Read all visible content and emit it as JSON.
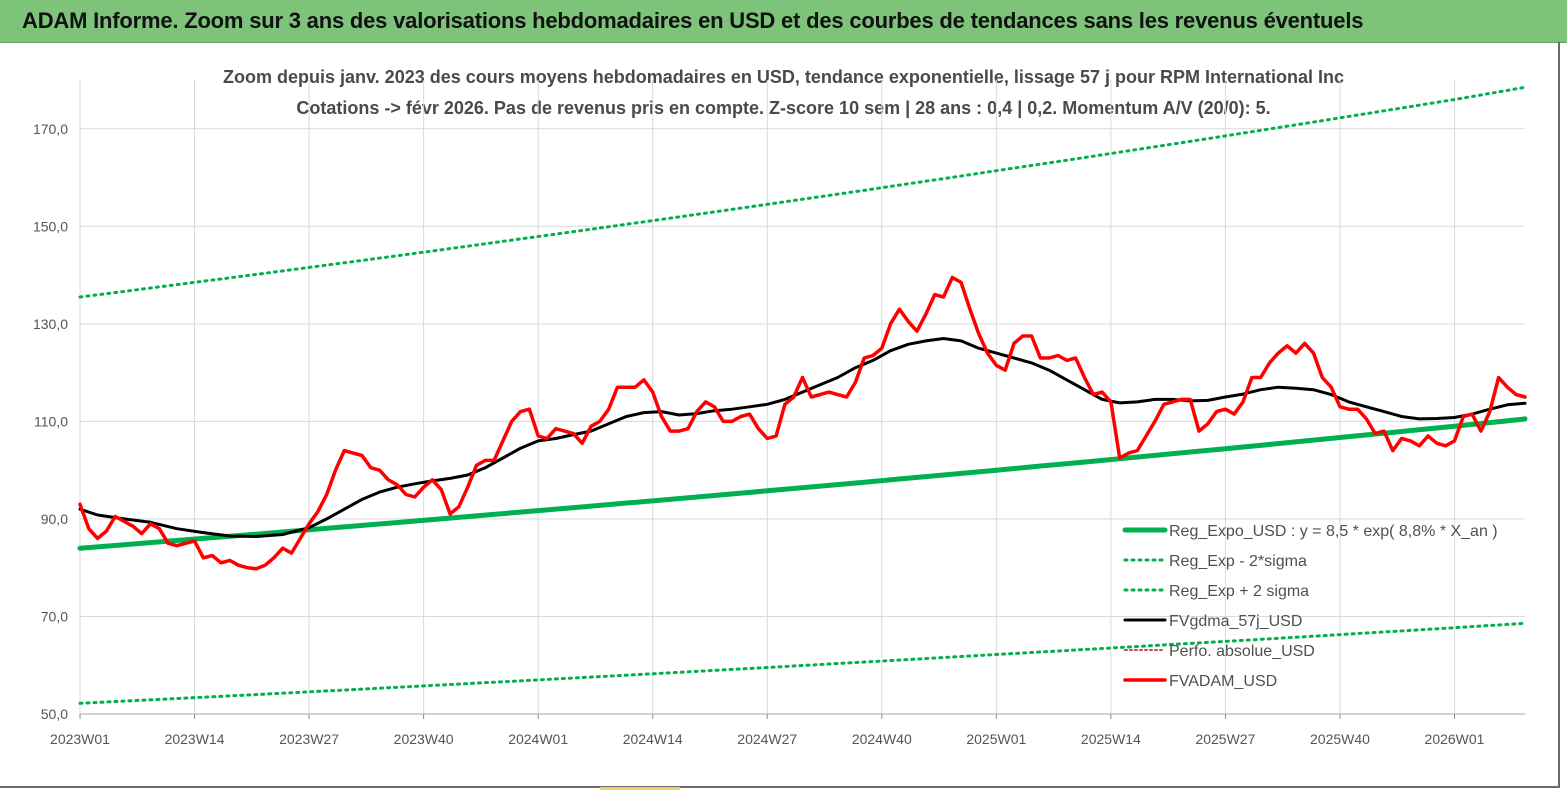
{
  "banner": {
    "title": "ADAM Informe. Zoom sur 3 ans des valorisations hebdomadaires en USD et des courbes de tendances sans les revenus éventuels"
  },
  "colors": {
    "banner_bg": "#7dc37a",
    "trend": "#00b050",
    "band": "#00b050",
    "gdma": "#000000",
    "perfo": "#c0504d",
    "adam": "#ff0000",
    "grid": "#d9d9d9"
  },
  "chart_data": {
    "type": "line",
    "title": "Zoom depuis janv. 2023 des cours moyens hebdomadaires en USD, tendance exponentielle, lissage 57 j pour RPM International Inc",
    "subtitle": "Cotations -> févr 2026. Pas de revenus pris en compte. Z-score 10 sem | 28 ans : 0,4 | 0,2. Momentum A/V (20/0): 5.",
    "xlabel": "",
    "ylabel": "",
    "ylim": [
      50,
      180
    ],
    "y_ticks": [
      "50,0",
      "70,0",
      "90,0",
      "110,0",
      "130,0",
      "150,0",
      "170,0"
    ],
    "y_tick_values": [
      50,
      70,
      90,
      110,
      130,
      150,
      170
    ],
    "x_ticks": [
      "2023W01",
      "2023W14",
      "2023W27",
      "2023W40",
      "2024W01",
      "2024W14",
      "2024W27",
      "2024W40",
      "2025W01",
      "2025W14",
      "2025W27",
      "2025W40",
      "2026W01"
    ],
    "x_tick_weeks": [
      0,
      13,
      26,
      39,
      52,
      65,
      78,
      91,
      104,
      117,
      130,
      143,
      156
    ],
    "x_range_weeks": [
      0,
      164
    ],
    "grid": true,
    "legend_position": "bottom-right",
    "series": [
      {
        "name": "Reg_Expo_USD : y = 8,5 * exp( 8,8% * X_an )",
        "style": "solid-thick",
        "points": [
          [
            0,
            84.0
          ],
          [
            52,
            91.7
          ],
          [
            104,
            100.0
          ],
          [
            156,
            109.0
          ],
          [
            164,
            110.5
          ]
        ]
      },
      {
        "name": "Reg_Exp - 2*sigma",
        "style": "dotted",
        "points": [
          [
            0,
            52.2
          ],
          [
            52,
            57.0
          ],
          [
            104,
            62.2
          ],
          [
            156,
            67.7
          ],
          [
            164,
            68.6
          ]
        ]
      },
      {
        "name": "Reg_Exp + 2 sigma",
        "style": "dotted",
        "points": [
          [
            0,
            135.5
          ],
          [
            52,
            147.9
          ],
          [
            104,
            161.4
          ],
          [
            156,
            176.0
          ],
          [
            164,
            178.5
          ]
        ]
      },
      {
        "name": "FVgdma_57j_USD",
        "style": "solid",
        "points": [
          [
            0,
            92.0
          ],
          [
            2,
            90.8
          ],
          [
            5,
            90.0
          ],
          [
            8,
            89.3
          ],
          [
            11,
            88.0
          ],
          [
            14,
            87.2
          ],
          [
            17,
            86.5
          ],
          [
            20,
            86.4
          ],
          [
            23,
            86.8
          ],
          [
            26,
            88.2
          ],
          [
            28,
            90.0
          ],
          [
            30,
            92.0
          ],
          [
            32,
            94.0
          ],
          [
            34,
            95.5
          ],
          [
            36,
            96.5
          ],
          [
            38,
            97.2
          ],
          [
            40,
            97.8
          ],
          [
            42,
            98.3
          ],
          [
            44,
            99.0
          ],
          [
            46,
            100.5
          ],
          [
            48,
            102.5
          ],
          [
            50,
            104.5
          ],
          [
            52,
            106.0
          ],
          [
            54,
            106.5
          ],
          [
            56,
            107.3
          ],
          [
            58,
            108.0
          ],
          [
            60,
            109.5
          ],
          [
            62,
            111.0
          ],
          [
            64,
            111.8
          ],
          [
            66,
            112.0
          ],
          [
            68,
            111.3
          ],
          [
            70,
            111.6
          ],
          [
            72,
            112.2
          ],
          [
            74,
            112.5
          ],
          [
            76,
            113.0
          ],
          [
            78,
            113.5
          ],
          [
            80,
            114.5
          ],
          [
            82,
            116.0
          ],
          [
            84,
            117.5
          ],
          [
            86,
            119.0
          ],
          [
            88,
            121.0
          ],
          [
            90,
            122.5
          ],
          [
            92,
            124.5
          ],
          [
            94,
            125.8
          ],
          [
            96,
            126.5
          ],
          [
            98,
            127.0
          ],
          [
            100,
            126.5
          ],
          [
            102,
            125.0
          ],
          [
            104,
            124.0
          ],
          [
            106,
            123.0
          ],
          [
            108,
            122.0
          ],
          [
            110,
            120.5
          ],
          [
            112,
            118.5
          ],
          [
            114,
            116.5
          ],
          [
            116,
            114.5
          ],
          [
            118,
            113.8
          ],
          [
            120,
            114.0
          ],
          [
            122,
            114.5
          ],
          [
            124,
            114.5
          ],
          [
            126,
            114.2
          ],
          [
            128,
            114.3
          ],
          [
            130,
            115.0
          ],
          [
            132,
            115.6
          ],
          [
            134,
            116.5
          ],
          [
            136,
            117.0
          ],
          [
            138,
            116.8
          ],
          [
            140,
            116.5
          ],
          [
            142,
            115.5
          ],
          [
            144,
            114.0
          ],
          [
            146,
            113.0
          ],
          [
            148,
            112.0
          ],
          [
            150,
            111.0
          ],
          [
            152,
            110.5
          ],
          [
            154,
            110.6
          ],
          [
            156,
            110.8
          ],
          [
            158,
            111.5
          ],
          [
            160,
            112.5
          ],
          [
            162,
            113.4
          ],
          [
            164,
            113.7
          ]
        ]
      },
      {
        "name": "Perfo. absolue_USD",
        "style": "dotted-thin",
        "points": []
      },
      {
        "name": "FVADAM_USD",
        "style": "solid-thick",
        "points": [
          [
            0,
            93.0
          ],
          [
            1,
            88.0
          ],
          [
            2,
            86.0
          ],
          [
            3,
            87.5
          ],
          [
            4,
            90.5
          ],
          [
            5,
            89.5
          ],
          [
            6,
            88.5
          ],
          [
            7,
            87.0
          ],
          [
            8,
            89.0
          ],
          [
            9,
            88.0
          ],
          [
            10,
            85.0
          ],
          [
            11,
            84.5
          ],
          [
            12,
            85.0
          ],
          [
            13,
            85.5
          ],
          [
            14,
            82.0
          ],
          [
            15,
            82.5
          ],
          [
            16,
            81.0
          ],
          [
            17,
            81.5
          ],
          [
            18,
            80.5
          ],
          [
            19,
            80.0
          ],
          [
            20,
            79.8
          ],
          [
            21,
            80.5
          ],
          [
            22,
            82.0
          ],
          [
            23,
            84.0
          ],
          [
            24,
            83.0
          ],
          [
            25,
            86.0
          ],
          [
            26,
            89.0
          ],
          [
            27,
            91.5
          ],
          [
            28,
            95.0
          ],
          [
            29,
            100.0
          ],
          [
            30,
            104.0
          ],
          [
            31,
            103.5
          ],
          [
            32,
            103.0
          ],
          [
            33,
            100.5
          ],
          [
            34,
            100.0
          ],
          [
            35,
            98.0
          ],
          [
            36,
            97.0
          ],
          [
            37,
            95.0
          ],
          [
            38,
            94.5
          ],
          [
            39,
            96.5
          ],
          [
            40,
            98.0
          ],
          [
            41,
            96.0
          ],
          [
            42,
            91.0
          ],
          [
            43,
            92.5
          ],
          [
            44,
            96.5
          ],
          [
            45,
            101.0
          ],
          [
            46,
            102.0
          ],
          [
            47,
            102.0
          ],
          [
            48,
            106.0
          ],
          [
            49,
            110.0
          ],
          [
            50,
            112.0
          ],
          [
            51,
            112.5
          ],
          [
            52,
            107.0
          ],
          [
            53,
            106.5
          ],
          [
            54,
            108.5
          ],
          [
            55,
            108.0
          ],
          [
            56,
            107.5
          ],
          [
            57,
            105.5
          ],
          [
            58,
            109.0
          ],
          [
            59,
            110.0
          ],
          [
            60,
            112.5
          ],
          [
            61,
            117.0
          ],
          [
            62,
            117.0
          ],
          [
            63,
            117.0
          ],
          [
            64,
            118.5
          ],
          [
            65,
            116.0
          ],
          [
            66,
            111.0
          ],
          [
            67,
            108.0
          ],
          [
            68,
            108.0
          ],
          [
            69,
            108.5
          ],
          [
            70,
            112.0
          ],
          [
            71,
            114.0
          ],
          [
            72,
            113.0
          ],
          [
            73,
            110.0
          ],
          [
            74,
            110.0
          ],
          [
            75,
            111.0
          ],
          [
            76,
            111.5
          ],
          [
            77,
            108.5
          ],
          [
            78,
            106.5
          ],
          [
            79,
            107.0
          ],
          [
            80,
            113.5
          ],
          [
            81,
            115.0
          ],
          [
            82,
            119.0
          ],
          [
            83,
            115.0
          ],
          [
            84,
            115.5
          ],
          [
            85,
            116.0
          ],
          [
            86,
            115.5
          ],
          [
            87,
            115.0
          ],
          [
            88,
            118.0
          ],
          [
            89,
            123.0
          ],
          [
            90,
            123.5
          ],
          [
            91,
            125.0
          ],
          [
            92,
            130.0
          ],
          [
            93,
            133.0
          ],
          [
            94,
            130.5
          ],
          [
            95,
            128.5
          ],
          [
            96,
            132.0
          ],
          [
            97,
            136.0
          ],
          [
            98,
            135.5
          ],
          [
            99,
            139.5
          ],
          [
            100,
            138.5
          ],
          [
            101,
            133.0
          ],
          [
            102,
            128.0
          ],
          [
            103,
            124.0
          ],
          [
            104,
            121.5
          ],
          [
            105,
            120.5
          ],
          [
            106,
            126.0
          ],
          [
            107,
            127.5
          ],
          [
            108,
            127.5
          ],
          [
            109,
            123.0
          ],
          [
            110,
            123.0
          ],
          [
            111,
            123.5
          ],
          [
            112,
            122.5
          ],
          [
            113,
            123.0
          ],
          [
            114,
            119.0
          ],
          [
            115,
            115.5
          ],
          [
            116,
            116.0
          ],
          [
            117,
            114.0
          ],
          [
            118,
            102.5
          ],
          [
            119,
            103.5
          ],
          [
            120,
            104.0
          ],
          [
            121,
            107.0
          ],
          [
            122,
            110.0
          ],
          [
            123,
            113.5
          ],
          [
            124,
            114.0
          ],
          [
            125,
            114.5
          ],
          [
            126,
            114.5
          ],
          [
            127,
            108.0
          ],
          [
            128,
            109.5
          ],
          [
            129,
            112.0
          ],
          [
            130,
            112.5
          ],
          [
            131,
            111.5
          ],
          [
            132,
            114.0
          ],
          [
            133,
            119.0
          ],
          [
            134,
            119.0
          ],
          [
            135,
            122.0
          ],
          [
            136,
            124.0
          ],
          [
            137,
            125.5
          ],
          [
            138,
            124.0
          ],
          [
            139,
            126.0
          ],
          [
            140,
            124.0
          ],
          [
            141,
            119.0
          ],
          [
            142,
            117.0
          ],
          [
            143,
            113.0
          ],
          [
            144,
            112.5
          ],
          [
            145,
            112.5
          ],
          [
            146,
            110.5
          ],
          [
            147,
            107.5
          ],
          [
            148,
            108.0
          ],
          [
            149,
            104.0
          ],
          [
            150,
            106.5
          ],
          [
            151,
            106.0
          ],
          [
            152,
            105.0
          ],
          [
            153,
            107.0
          ],
          [
            154,
            105.5
          ],
          [
            155,
            105.0
          ],
          [
            156,
            106.0
          ],
          [
            157,
            111.0
          ],
          [
            158,
            111.5
          ],
          [
            159,
            108.0
          ],
          [
            160,
            112.0
          ],
          [
            161,
            119.0
          ],
          [
            162,
            117.0
          ],
          [
            163,
            115.5
          ],
          [
            164,
            115.0
          ]
        ]
      }
    ]
  }
}
